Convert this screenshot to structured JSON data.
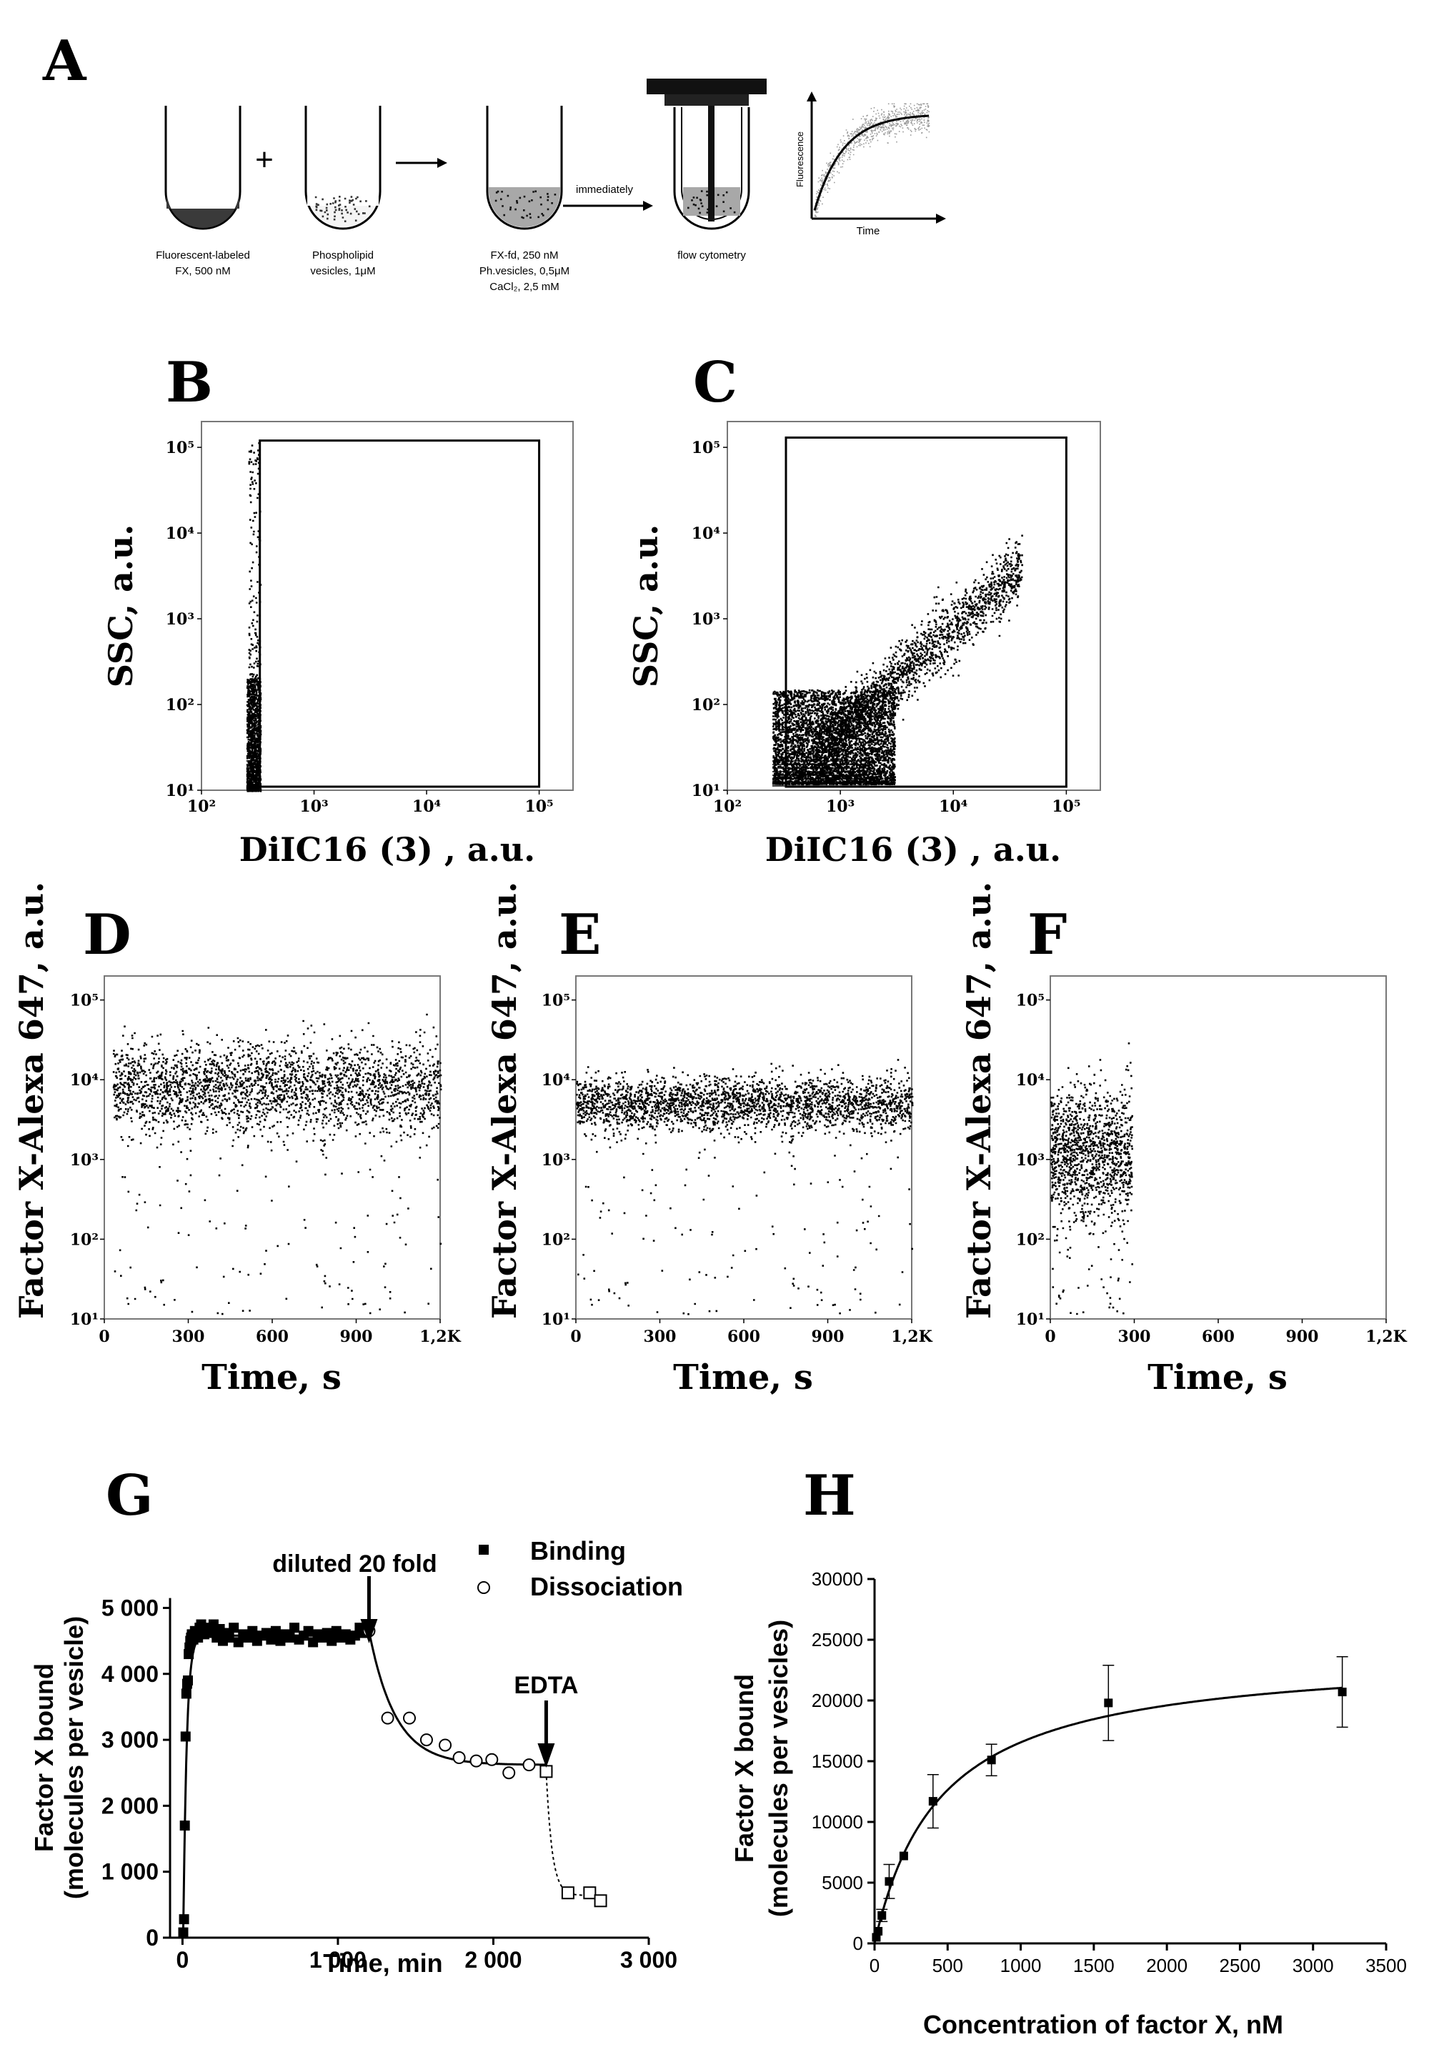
{
  "figure": {
    "panel_labels": {
      "A": "A",
      "B": "B",
      "C": "C",
      "D": "D",
      "E": "E",
      "F": "F",
      "G": "G",
      "H": "H"
    }
  },
  "schematic": {
    "tube1_label": [
      "Fluorescent-labeled",
      "FX, 500 nM"
    ],
    "plus": "+",
    "tube2_label": [
      "Phospholipid",
      "vesicles, 1μM"
    ],
    "arrow": "→",
    "tube3_label": [
      "FX-fd, 250 nM",
      "Ph.vesicles, 0,5μM",
      "CaCl₂, 2,5 mM"
    ],
    "immediately": "immediately",
    "tube4_label": "flow cytometry",
    "inset_ylabel": "Fluorescence",
    "inset_xlabel": "Time"
  },
  "chart_data": [
    {
      "id": "B",
      "type": "scatter",
      "xscale": "log",
      "yscale": "log",
      "xlabel": "DiIC16 (3) , a.u.",
      "ylabel": "SSC, a.u.",
      "xlim": [
        100,
        200000
      ],
      "ylim": [
        10,
        200000
      ],
      "xticks": [
        "10²",
        "10³",
        "10⁴",
        "10⁵"
      ],
      "yticks": [
        "10¹",
        "10²",
        "10³",
        "10⁴",
        "10⁵"
      ],
      "gate": {
        "x": [
          330,
          100000
        ],
        "y": [
          11,
          120000
        ]
      },
      "populations": [
        {
          "x_range": [
            250,
            330
          ],
          "y_range": [
            10,
            200
          ],
          "n": 1200
        },
        {
          "x_range": [
            260,
            330
          ],
          "y_range": [
            200,
            120000
          ],
          "n": 140
        }
      ]
    },
    {
      "id": "C",
      "type": "scatter",
      "xscale": "log",
      "yscale": "log",
      "xlabel": "DiIC16 (3) , a.u.",
      "ylabel": "SSC, a.u.",
      "xlim": [
        100,
        200000
      ],
      "ylim": [
        10,
        200000
      ],
      "xticks": [
        "10²",
        "10³",
        "10⁴",
        "10⁵"
      ],
      "yticks": [
        "10¹",
        "10²",
        "10³",
        "10⁴",
        "10⁵"
      ],
      "gate": {
        "x": [
          330,
          100000
        ],
        "y": [
          11,
          130000
        ]
      },
      "populations": [
        {
          "x_range": [
            250,
            3000
          ],
          "y_range": [
            12,
            150
          ],
          "n": 4500
        },
        {
          "x_range": [
            600,
            40000
          ],
          "y_range": [
            30,
            4000
          ],
          "n": 1800
        }
      ]
    },
    {
      "id": "D",
      "type": "scatter",
      "yscale": "log",
      "xlabel": "Time, s",
      "ylabel": "Factor X-Alexa 647, a.u.",
      "xlim": [
        0,
        1200
      ],
      "ylim": [
        10,
        200000
      ],
      "xticks": [
        "0",
        "300",
        "600",
        "900",
        "1,2K"
      ],
      "yticks": [
        "10¹",
        "10²",
        "10³",
        "10⁴",
        "10⁵"
      ],
      "median_y": 8000,
      "time_range": [
        30,
        1200
      ],
      "n": 9000
    },
    {
      "id": "E",
      "type": "scatter",
      "yscale": "log",
      "xlabel": "Time, s",
      "ylabel": "Factor X-Alexa 647, a.u.",
      "xlim": [
        0,
        1200
      ],
      "ylim": [
        10,
        200000
      ],
      "xticks": [
        "0",
        "300",
        "600",
        "900",
        "1,2K"
      ],
      "yticks": [
        "10¹",
        "10²",
        "10³",
        "10⁴",
        "10⁵"
      ],
      "median_y": 5000,
      "time_range": [
        0,
        1200
      ],
      "n": 2800
    },
    {
      "id": "F",
      "type": "scatter",
      "yscale": "log",
      "xlabel": "Time, s",
      "ylabel": "Factor X-Alexa 647, a.u.",
      "xlim": [
        0,
        1200
      ],
      "ylim": [
        10,
        200000
      ],
      "xticks": [
        "0",
        "300",
        "600",
        "900",
        "1,2K"
      ],
      "yticks": [
        "10¹",
        "10²",
        "10³",
        "10⁴",
        "10⁵"
      ],
      "median_y": 1200,
      "time_range": [
        0,
        290
      ],
      "n": 1300
    },
    {
      "id": "G",
      "type": "scatter",
      "xlabel": "Time, min",
      "ylabel": [
        "Factor X bound",
        "(molecules per vesicle)"
      ],
      "xlim": [
        -80,
        3000
      ],
      "ylim": [
        0,
        5200
      ],
      "xticks": [
        "0",
        "1 000",
        "2 000",
        "3 000"
      ],
      "yticks": [
        "0",
        "1 000",
        "2 000",
        "3 000",
        "4 000",
        "5 000"
      ],
      "series": [
        {
          "name": "Binding",
          "marker": "square-filled",
          "x": [
            5,
            10,
            15,
            20,
            25,
            30,
            35,
            40,
            45,
            50,
            55,
            60,
            70,
            80,
            90,
            100,
            110,
            120,
            130,
            140,
            160,
            180,
            200,
            220,
            240,
            260,
            280,
            300,
            330,
            360,
            390,
            420,
            450,
            480,
            510,
            540,
            570,
            600,
            630,
            660,
            690,
            720,
            750,
            780,
            810,
            840,
            870,
            900,
            930,
            960,
            990,
            1020,
            1050,
            1080,
            1110,
            1140,
            1170
          ],
          "y": [
            80,
            280,
            1700,
            3050,
            3700,
            3850,
            3900,
            4300,
            4400,
            4500,
            4550,
            4600,
            4520,
            4650,
            4600,
            4550,
            4700,
            4750,
            4650,
            4600,
            4700,
            4620,
            4750,
            4550,
            4680,
            4500,
            4620,
            4550,
            4700,
            4480,
            4600,
            4550,
            4650,
            4500,
            4580,
            4620,
            4520,
            4650,
            4500,
            4600,
            4550,
            4700,
            4520,
            4580,
            4650,
            4480,
            4600,
            4550,
            4620,
            4500,
            4650,
            4550,
            4600,
            4520,
            4580,
            4700,
            4620
          ]
        },
        {
          "name": "Dissociation",
          "marker": "circle-open",
          "x": [
            1200,
            1320,
            1460,
            1570,
            1690,
            1780,
            1890,
            1990,
            2100,
            2230,
            2340
          ],
          "y": [
            4650,
            3330,
            3330,
            3000,
            2920,
            2730,
            2680,
            2700,
            2500,
            2620,
            2520
          ]
        }
      ],
      "extra_points": {
        "marker": "square-open",
        "x": [
          2340,
          2480,
          2620,
          2690
        ],
        "y": [
          2520,
          680,
          680,
          560
        ]
      },
      "annotations": [
        {
          "text": "diluted 20 fold",
          "x": 1200
        },
        {
          "text": "EDTA",
          "x": 2340
        }
      ]
    },
    {
      "id": "H",
      "type": "scatter",
      "xlabel": "Concentration of factor X, nM",
      "ylabel": [
        "Factor X bound",
        "(molecules per vesicles)"
      ],
      "xlim": [
        0,
        3500
      ],
      "ylim": [
        0,
        30000
      ],
      "xticks": [
        "0",
        "500",
        "1000",
        "1500",
        "2000",
        "2500",
        "3000",
        "3500"
      ],
      "yticks": [
        "0",
        "5000",
        "10000",
        "15000",
        "20000",
        "25000",
        "30000"
      ],
      "series": [
        {
          "name": "",
          "marker": "square-filled",
          "x": [
            12,
            25,
            50,
            100,
            200,
            400,
            800,
            1600,
            3200
          ],
          "y": [
            500,
            1000,
            2300,
            5100,
            7200,
            11700,
            15100,
            19800,
            20700
          ],
          "err": [
            0,
            0,
            500,
            1400,
            0,
            2200,
            1300,
            3100,
            2900
          ]
        }
      ],
      "fit": {
        "model": "hyperbola",
        "Bmax": 24000,
        "Kd": 450
      }
    }
  ]
}
